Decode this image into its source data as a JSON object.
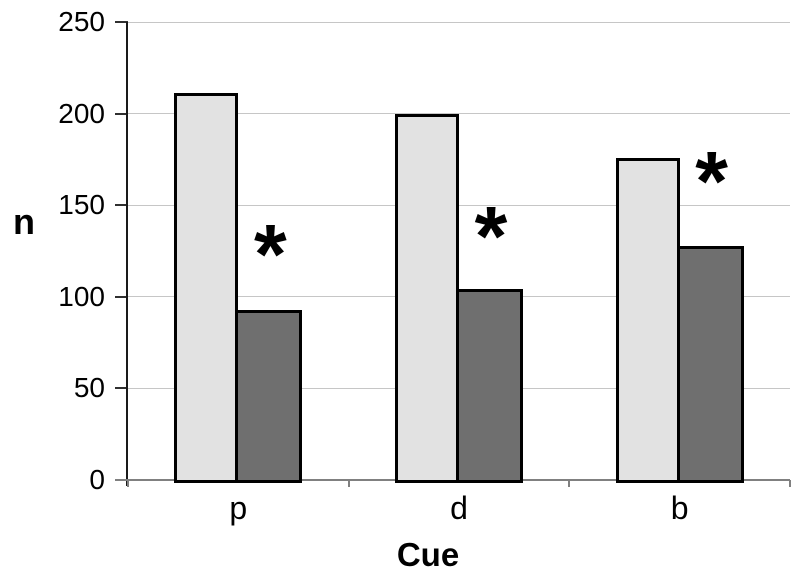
{
  "chart_data": {
    "type": "bar",
    "title": "",
    "xlabel": "Cue",
    "ylabel": "n",
    "categories": [
      "p",
      "d",
      "b"
    ],
    "series": [
      {
        "name": "light-gray",
        "color": "#e2e2e2",
        "border_color": "#000000",
        "values": [
          211,
          200,
          176
        ]
      },
      {
        "name": "dark-gray",
        "color": "#6f6f6f",
        "border_color": "#000000",
        "values": [
          93,
          104,
          128
        ]
      }
    ],
    "annotations": [
      {
        "text": "*",
        "category_index": 0,
        "series_index": 1,
        "value": 131
      },
      {
        "text": "*",
        "category_index": 1,
        "series_index": 1,
        "value": 141
      },
      {
        "text": "*",
        "category_index": 2,
        "series_index": 1,
        "value": 171
      }
    ],
    "ylim": [
      0,
      250
    ],
    "yticks": [
      0,
      50,
      100,
      150,
      200,
      250
    ],
    "grid": true,
    "legend": false
  },
  "style": {
    "gridline_color": "#c6c6c6",
    "x_axis_color": "#808080",
    "y_axis_color": "#1a1a1a",
    "background": "#ffffff",
    "text_color": "#000000"
  }
}
